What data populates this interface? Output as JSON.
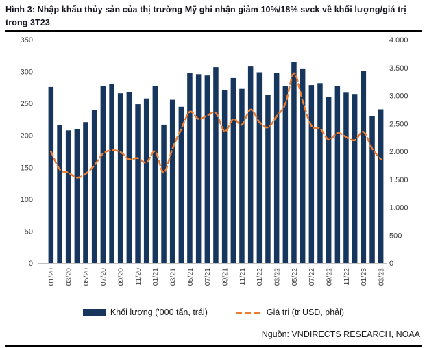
{
  "header": {
    "title": "Hình 3: Nhập khẩu thủy sản của thị trường Mỹ ghi nhận giảm 10%/18% svck về khối lượng/giá trị trong 3T23"
  },
  "colors": {
    "bar_navy": "#17365D",
    "line_orange": "#ED7D31",
    "axis_text": "#404040",
    "axis_line": "#bfbfbf",
    "rule_black": "#000000"
  },
  "chart_data": {
    "type": "bar",
    "subtype": "combo-bar-line-dual-axis",
    "grid": false,
    "legend_position": "bottom",
    "categories": [
      "01/20",
      "02/20",
      "03/20",
      "04/20",
      "05/20",
      "06/20",
      "07/20",
      "08/20",
      "09/20",
      "10/20",
      "11/20",
      "12/20",
      "01/21",
      "02/21",
      "03/21",
      "04/21",
      "05/21",
      "06/21",
      "07/21",
      "08/21",
      "09/21",
      "10/21",
      "11/21",
      "12/21",
      "01/22",
      "02/22",
      "03/22",
      "04/22",
      "05/22",
      "06/22",
      "07/22",
      "08/22",
      "09/22",
      "10/22",
      "11/22",
      "12/22",
      "01/23",
      "02/23",
      "03/23"
    ],
    "xtick_step": 2,
    "x_tick_labels": [
      "01/20",
      "03/20",
      "05/20",
      "07/20",
      "09/20",
      "11/20",
      "01/21",
      "03/21",
      "05/21",
      "07/21",
      "09/21",
      "11/21",
      "01/22",
      "03/22",
      "05/22",
      "07/22",
      "09/22",
      "11/22",
      "01/23",
      "03/23"
    ],
    "series": [
      {
        "name": "Khối lượng ('000 tấn, trái)",
        "type": "bar",
        "axis": "left",
        "color": "#17365D",
        "values": [
          276,
          216,
          208,
          210,
          221,
          240,
          278,
          281,
          266,
          268,
          249,
          258,
          277,
          217,
          256,
          245,
          298,
          296,
          294,
          307,
          271,
          290,
          273,
          308,
          299,
          264,
          298,
          278,
          315,
          305,
          279,
          282,
          260,
          278,
          267,
          265,
          301,
          230,
          241
        ]
      },
      {
        "name": "Giá trị (tr USD, phải)",
        "type": "line",
        "style": "dashed",
        "axis": "right",
        "color": "#ED7D31",
        "values": [
          2000,
          1680,
          1620,
          1530,
          1600,
          1750,
          1960,
          2020,
          1990,
          1860,
          1880,
          1800,
          2000,
          1620,
          2050,
          2400,
          2710,
          2580,
          2640,
          2690,
          2360,
          2580,
          2480,
          2750,
          2530,
          2430,
          2630,
          2850,
          3400,
          2900,
          2460,
          2410,
          2210,
          2330,
          2260,
          2200,
          2350,
          2050,
          1860
        ]
      }
    ],
    "y_left": {
      "min": 0,
      "max": 350,
      "step": 50,
      "tick_labels": [
        "0",
        "50",
        "100",
        "150",
        "200",
        "250",
        "300",
        "350"
      ]
    },
    "y_right": {
      "min": 0,
      "max": 4000,
      "step": 500,
      "tick_labels": [
        "0",
        "500",
        "1.000",
        "1.500",
        "2.000",
        "2.500",
        "3.000",
        "3.500",
        "4.000"
      ]
    }
  },
  "legend": {
    "items": [
      {
        "label": "Khối lượng ('000 tấn, trái)",
        "marker": "bar-swatch",
        "color": "#17365D"
      },
      {
        "label": "Giá trị (tr USD, phải)",
        "marker": "dashed-line",
        "color": "#ED7D31"
      }
    ]
  },
  "source": {
    "label": "Nguồn: VNDIRECTS RESEARCH, NOAA"
  }
}
